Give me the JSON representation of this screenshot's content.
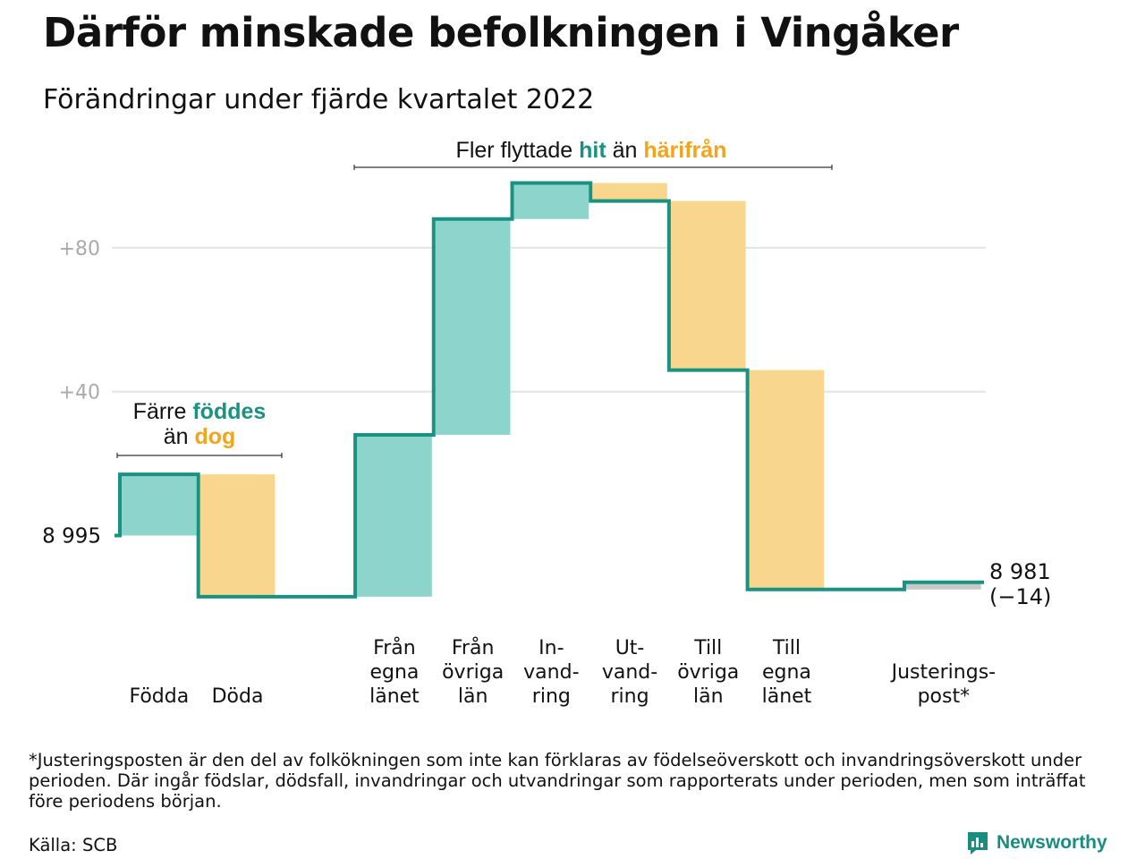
{
  "title": "Därför minskade befolkningen i Vingåker",
  "subtitle": "Förändringar under fjärde kvartalet 2022",
  "footnote": "*Justeringsposten är den del av folkökningen som inte kan förklaras av födelseöverskott och invandringsöverskott under perioden. Där ingår födslar, dödsfall, invandringar och utvandringar som rapporterats under perioden, men som inträffat före periodens början.",
  "source": "Källa: SCB",
  "brand": "Newsworthy",
  "colors": {
    "increase": "#8dd5cc",
    "decrease": "#f9d68d",
    "adjustment": "#c8c8c8",
    "line": "#1a9282",
    "teal_text": "#1a9282",
    "orange_text": "#f3a41d",
    "grid": "#e4e4e4"
  },
  "chart_data": {
    "type": "waterfall",
    "start_value": 8995,
    "start_label": "8 995",
    "end_value": 8981,
    "end_label": "8 981",
    "end_change_label": "(−14)",
    "y_tick_labels": [
      "+40",
      "+80"
    ],
    "y_ticks": [
      40,
      80
    ],
    "ylim": [
      -20,
      100
    ],
    "grid": true,
    "steps": [
      {
        "label": [
          "Födda"
        ],
        "value": 17,
        "kind": "increase"
      },
      {
        "label": [
          "Döda"
        ],
        "value": -34,
        "kind": "decrease"
      },
      {
        "label": [],
        "value": 0,
        "kind": "gap"
      },
      {
        "label": [
          "Från",
          "egna",
          "länet"
        ],
        "value": 45,
        "kind": "increase"
      },
      {
        "label": [
          "Från",
          "övriga",
          "län"
        ],
        "value": 60,
        "kind": "increase"
      },
      {
        "label": [
          "In-",
          "vand-",
          "ring"
        ],
        "value": 10,
        "kind": "increase"
      },
      {
        "label": [
          "Ut-",
          "vand-",
          "ring"
        ],
        "value": -5,
        "kind": "decrease"
      },
      {
        "label": [
          "Till",
          "övriga",
          "län"
        ],
        "value": -47,
        "kind": "decrease"
      },
      {
        "label": [
          "Till",
          "egna",
          "länet"
        ],
        "value": -61,
        "kind": "decrease"
      },
      {
        "label": [],
        "value": 0,
        "kind": "gap"
      },
      {
        "label": [
          "Justerings-",
          "post*"
        ],
        "value": 2,
        "kind": "adjustment"
      }
    ],
    "annotations": [
      {
        "parts": [
          {
            "text": "Färre ",
            "style": "normal"
          },
          {
            "text": "föddes",
            "style": "teal"
          }
        ],
        "parts2": [
          {
            "text": "än ",
            "style": "normal"
          },
          {
            "text": "dog",
            "style": "orange"
          }
        ],
        "span": [
          0,
          1
        ]
      },
      {
        "parts": [
          {
            "text": "Fler flyttade ",
            "style": "normal"
          },
          {
            "text": "hit",
            "style": "teal"
          },
          {
            "text": " än ",
            "style": "normal"
          },
          {
            "text": "härifrån",
            "style": "orange"
          }
        ],
        "span": [
          3,
          8
        ]
      }
    ]
  }
}
